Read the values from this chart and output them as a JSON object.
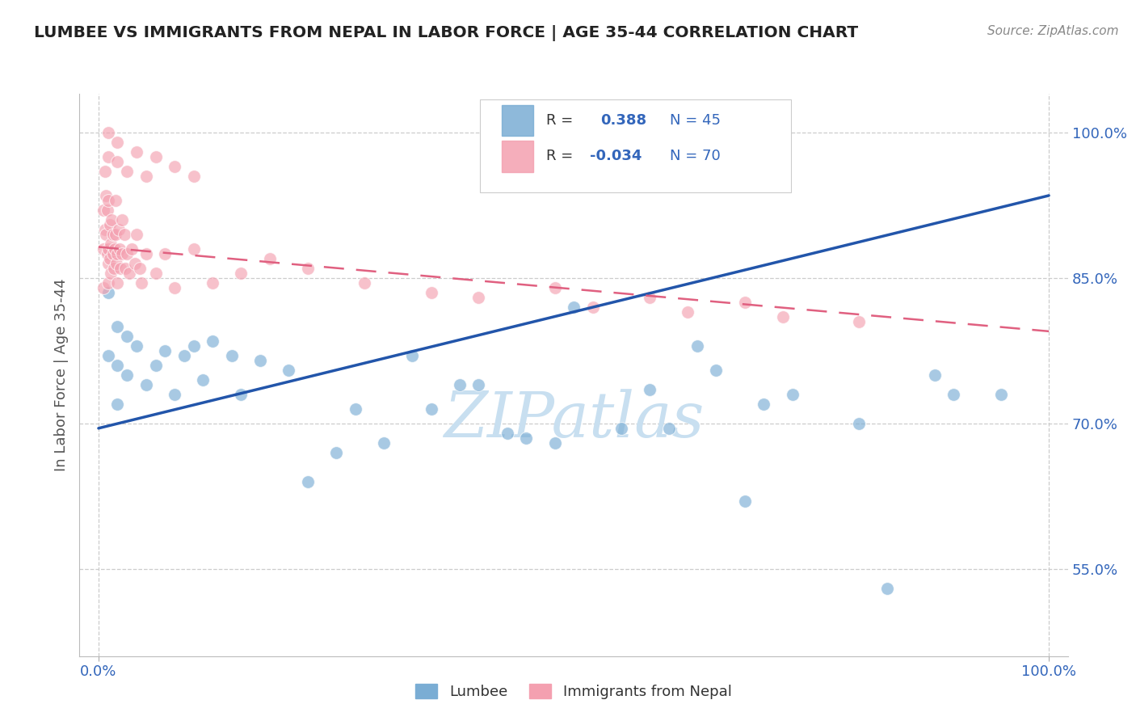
{
  "title": "LUMBEE VS IMMIGRANTS FROM NEPAL IN LABOR FORCE | AGE 35-44 CORRELATION CHART",
  "source_text": "Source: ZipAtlas.com",
  "ylabel": "In Labor Force | Age 35-44",
  "xlabel_lumbee": "Lumbee",
  "xlabel_nepal": "Immigrants from Nepal",
  "r_lumbee": 0.388,
  "n_lumbee": 45,
  "r_nepal": -0.034,
  "n_nepal": 70,
  "blue_color": "#7aadd4",
  "pink_color": "#f4a0b0",
  "blue_line_color": "#2255aa",
  "pink_line_color": "#e06080",
  "watermark_color": "#c8dff0",
  "title_color": "#222222",
  "axis_label_color": "#555555",
  "tick_color": "#3366bb",
  "source_color": "#888888",
  "yticks": [
    0.55,
    0.7,
    0.85,
    1.0
  ],
  "ytick_labels": [
    "55.0%",
    "70.0%",
    "85.0%",
    "100.0%"
  ],
  "xticks": [
    0.0,
    1.0
  ],
  "xtick_labels": [
    "0.0%",
    "100.0%"
  ],
  "ymin": 0.46,
  "ymax": 1.04,
  "xmin": -0.02,
  "xmax": 1.02,
  "blue_line_x0": 0.0,
  "blue_line_y0": 0.695,
  "blue_line_x1": 1.0,
  "blue_line_y1": 0.935,
  "pink_line_x0": 0.0,
  "pink_line_y0": 0.882,
  "pink_line_x1": 1.0,
  "pink_line_y1": 0.795,
  "lumbee_x": [
    0.01,
    0.01,
    0.02,
    0.02,
    0.02,
    0.03,
    0.03,
    0.04,
    0.05,
    0.06,
    0.07,
    0.08,
    0.09,
    0.1,
    0.11,
    0.12,
    0.14,
    0.15,
    0.17,
    0.2,
    0.22,
    0.25,
    0.27,
    0.3,
    0.33,
    0.35,
    0.38,
    0.4,
    0.43,
    0.45,
    0.48,
    0.5,
    0.55,
    0.58,
    0.6,
    0.63,
    0.65,
    0.68,
    0.7,
    0.73,
    0.8,
    0.83,
    0.88,
    0.9,
    0.95
  ],
  "lumbee_y": [
    0.835,
    0.77,
    0.8,
    0.76,
    0.72,
    0.79,
    0.75,
    0.78,
    0.74,
    0.76,
    0.775,
    0.73,
    0.77,
    0.78,
    0.745,
    0.785,
    0.77,
    0.73,
    0.765,
    0.755,
    0.64,
    0.67,
    0.715,
    0.68,
    0.77,
    0.715,
    0.74,
    0.74,
    0.69,
    0.685,
    0.68,
    0.82,
    0.695,
    0.735,
    0.695,
    0.78,
    0.755,
    0.62,
    0.72,
    0.73,
    0.7,
    0.53,
    0.75,
    0.73,
    0.73
  ],
  "nepal_x": [
    0.005,
    0.005,
    0.005,
    0.007,
    0.007,
    0.008,
    0.008,
    0.009,
    0.009,
    0.01,
    0.01,
    0.01,
    0.01,
    0.012,
    0.012,
    0.013,
    0.013,
    0.014,
    0.015,
    0.015,
    0.016,
    0.017,
    0.018,
    0.018,
    0.019,
    0.02,
    0.02,
    0.021,
    0.022,
    0.023,
    0.025,
    0.025,
    0.027,
    0.028,
    0.03,
    0.032,
    0.035,
    0.038,
    0.04,
    0.043,
    0.045,
    0.05,
    0.06,
    0.07,
    0.08,
    0.1,
    0.12,
    0.15,
    0.18,
    0.22,
    0.28,
    0.35,
    0.4,
    0.48,
    0.52,
    0.58,
    0.62,
    0.68,
    0.72,
    0.8,
    0.01,
    0.01,
    0.02,
    0.02,
    0.03,
    0.04,
    0.05,
    0.06,
    0.08,
    0.1
  ],
  "nepal_y": [
    0.92,
    0.88,
    0.84,
    0.96,
    0.9,
    0.935,
    0.895,
    0.875,
    0.92,
    0.88,
    0.865,
    0.845,
    0.93,
    0.905,
    0.87,
    0.885,
    0.855,
    0.91,
    0.895,
    0.875,
    0.86,
    0.88,
    0.93,
    0.895,
    0.865,
    0.875,
    0.845,
    0.9,
    0.88,
    0.86,
    0.91,
    0.875,
    0.895,
    0.86,
    0.875,
    0.855,
    0.88,
    0.865,
    0.895,
    0.86,
    0.845,
    0.875,
    0.855,
    0.875,
    0.84,
    0.88,
    0.845,
    0.855,
    0.87,
    0.86,
    0.845,
    0.835,
    0.83,
    0.84,
    0.82,
    0.83,
    0.815,
    0.825,
    0.81,
    0.805,
    0.975,
    1.0,
    0.97,
    0.99,
    0.96,
    0.98,
    0.955,
    0.975,
    0.965,
    0.955
  ]
}
